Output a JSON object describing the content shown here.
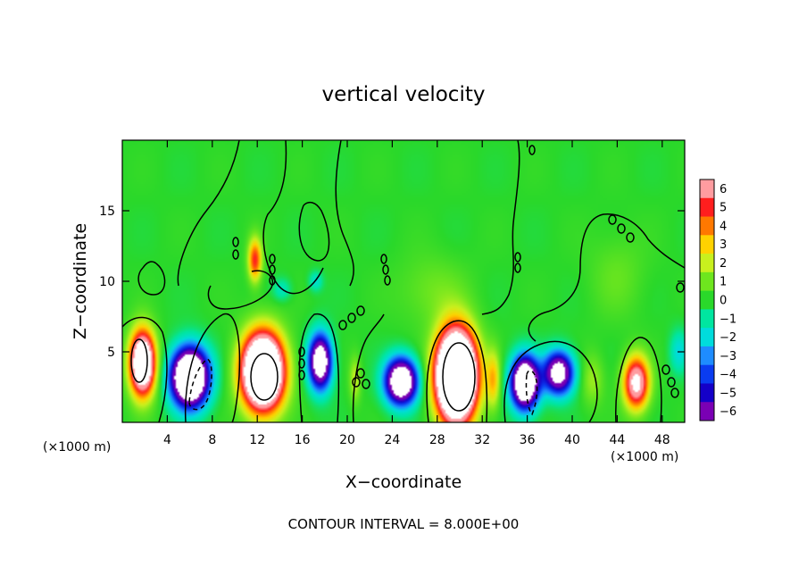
{
  "chart_data": {
    "type": "heatmap",
    "title": "vertical velocity",
    "xlabel": "X−coordinate",
    "ylabel": "Z−coordinate",
    "x_unit_left": "(×1000 m)",
    "x_unit_right": "(×1000 m)",
    "footer": "CONTOUR INTERVAL = 8.000E+00",
    "xlim": [
      0,
      50
    ],
    "ylim": [
      0,
      20
    ],
    "x_ticks": [
      4,
      8,
      12,
      16,
      20,
      24,
      28,
      32,
      36,
      40,
      44,
      48
    ],
    "y_ticks": [
      5,
      10,
      15
    ],
    "colorbar": {
      "levels": [
        -6,
        -5,
        -4,
        -3,
        -2,
        -1,
        0,
        1,
        2,
        3,
        4,
        5,
        6
      ],
      "level_labels": [
        "−6",
        "−5",
        "−4",
        "−3",
        "−2",
        "−1",
        "0",
        "1",
        "2",
        "3",
        "4",
        "5",
        "6"
      ],
      "colors": [
        "#7a00b4",
        "#1400c8",
        "#0a3cf0",
        "#1e8cff",
        "#00dcdc",
        "#00e6a0",
        "#2ad82a",
        "#6ee61e",
        "#c8f01e",
        "#ffd200",
        "#ff7800",
        "#ff1e1e",
        "#ff9ca0"
      ],
      "saturated_color": "#ffffff"
    },
    "cells": [
      {
        "x": 1.8,
        "z": 4.2,
        "value": 12,
        "sx": 1.1,
        "sz": 2.2
      },
      {
        "x": 6.0,
        "z": 3.2,
        "value": -14,
        "sx": 1.6,
        "sz": 2.0
      },
      {
        "x": 12.5,
        "z": 3.6,
        "value": 16,
        "sx": 1.8,
        "sz": 2.6
      },
      {
        "x": 11.8,
        "z": 11.5,
        "value": 5,
        "sx": 0.6,
        "sz": 1.5
      },
      {
        "x": 17.6,
        "z": 4.3,
        "value": -10,
        "sx": 1.0,
        "sz": 1.9
      },
      {
        "x": 20.7,
        "z": 3.0,
        "value": 2,
        "sx": 0.5,
        "sz": 1.6
      },
      {
        "x": 24.8,
        "z": 2.9,
        "value": -11,
        "sx": 1.4,
        "sz": 1.6
      },
      {
        "x": 29.7,
        "z": 3.3,
        "value": 20,
        "sx": 1.7,
        "sz": 3.0
      },
      {
        "x": 35.8,
        "z": 2.8,
        "value": -12,
        "sx": 1.2,
        "sz": 1.8
      },
      {
        "x": 38.8,
        "z": 3.5,
        "value": -9,
        "sx": 1.3,
        "sz": 1.5
      },
      {
        "x": 45.7,
        "z": 2.8,
        "value": 8,
        "sx": 1.1,
        "sz": 1.8
      },
      {
        "x": 33.0,
        "z": 3.0,
        "value": 3,
        "sx": 0.6,
        "sz": 2.0
      },
      {
        "x": 41.8,
        "z": 3.0,
        "value": 1.5,
        "sx": 1.0,
        "sz": 1.8
      },
      {
        "x": 14.2,
        "z": 9.4,
        "value": -1.5,
        "sx": 0.8,
        "sz": 0.8
      },
      {
        "x": 17.2,
        "z": 10.0,
        "value": -1.8,
        "sx": 0.6,
        "sz": 0.7
      },
      {
        "x": 27.5,
        "z": 9.3,
        "value": 1,
        "sx": 3.0,
        "sz": 2.5
      },
      {
        "x": 44.0,
        "z": 10.5,
        "value": 0.8,
        "sx": 2.5,
        "sz": 3.0
      },
      {
        "x": 49.5,
        "z": 5.0,
        "value": -2,
        "sx": 0.8,
        "sz": 1.5
      }
    ]
  }
}
